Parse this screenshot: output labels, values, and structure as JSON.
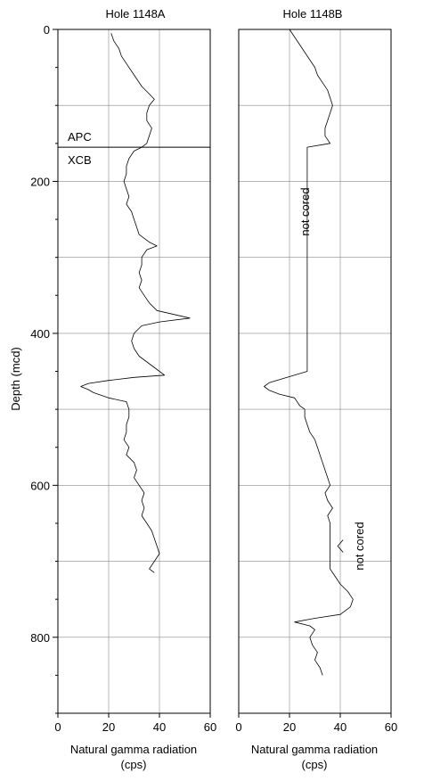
{
  "chart_data": {
    "type": "line",
    "ylabel": "Depth (mcd)",
    "ylim": [
      0,
      900
    ],
    "y_ticks": [
      "0",
      "200",
      "400",
      "600",
      "800"
    ],
    "xlim": [
      0,
      60
    ],
    "x_ticks": [
      "0",
      "20",
      "40",
      "60"
    ],
    "grid": true,
    "y_inverted": true,
    "panels": [
      {
        "title": "Hole 1148A",
        "xlabel_line1": "Natural gamma radiation",
        "xlabel_line2": "(cps)",
        "boundary": {
          "depth": 155,
          "label_above": "APC",
          "label_below": "XCB"
        },
        "series": {
          "depth": [
            5,
            15,
            25,
            35,
            45,
            55,
            65,
            75,
            85,
            92,
            100,
            110,
            120,
            130,
            140,
            150,
            155,
            160,
            170,
            180,
            190,
            200,
            210,
            220,
            230,
            240,
            250,
            260,
            270,
            280,
            285,
            290,
            300,
            310,
            320,
            330,
            340,
            350,
            360,
            370,
            380,
            385,
            390,
            400,
            410,
            420,
            430,
            440,
            450,
            455,
            458,
            462,
            466,
            470,
            474,
            478,
            485,
            490,
            500,
            510,
            520,
            530,
            540,
            550,
            560,
            570,
            580,
            590,
            600,
            610,
            620,
            630,
            640,
            650,
            660,
            670,
            680,
            690,
            700,
            710,
            715
          ],
          "value": [
            21,
            22,
            24,
            25,
            27,
            29,
            31,
            33,
            36,
            38,
            36,
            35,
            35,
            37,
            36,
            35,
            33,
            30,
            28,
            27,
            27,
            26,
            27,
            28,
            27,
            29,
            30,
            31,
            32,
            36,
            39,
            35,
            33,
            33,
            32,
            33,
            32,
            34,
            36,
            39,
            52,
            40,
            33,
            30,
            29,
            30,
            32,
            36,
            40,
            42,
            30,
            20,
            12,
            9,
            12,
            14,
            20,
            27,
            28,
            28,
            27,
            27,
            26,
            28,
            27,
            30,
            31,
            30,
            32,
            34,
            33,
            34,
            33,
            35,
            37,
            38,
            39,
            40,
            38,
            36,
            38
          ]
        }
      },
      {
        "title": "Hole 1148B",
        "xlabel_line1": "Natural gamma radiation",
        "xlabel_line2": "(cps)",
        "annotations": [
          {
            "text": "not cored",
            "depth": 240
          },
          {
            "text": "not cored",
            "depth": 680
          }
        ],
        "series": {
          "depth": [
            0,
            10,
            20,
            30,
            40,
            50,
            60,
            70,
            80,
            90,
            100,
            110,
            120,
            130,
            140,
            150,
            155,
            450,
            455,
            460,
            465,
            470,
            475,
            480,
            485,
            495,
            500,
            510,
            520,
            530,
            540,
            550,
            560,
            570,
            580,
            590,
            600,
            610,
            620,
            630,
            640,
            650,
            655,
            710,
            720,
            730,
            740,
            750,
            760,
            770,
            775,
            780,
            785,
            790,
            800,
            810,
            820,
            830,
            840,
            850
          ],
          "value": [
            20,
            22,
            24,
            26,
            28,
            30,
            31,
            33,
            35,
            36,
            37,
            36,
            35,
            34,
            34,
            36,
            27,
            27,
            22,
            17,
            12,
            10,
            12,
            16,
            22,
            24,
            26,
            26,
            27,
            28,
            30,
            31,
            32,
            33,
            34,
            35,
            36,
            34,
            35,
            37,
            35,
            36,
            36,
            36,
            38,
            40,
            43,
            45,
            44,
            40,
            30,
            22,
            28,
            30,
            28,
            29,
            31,
            30,
            32,
            33
          ]
        }
      }
    ]
  }
}
